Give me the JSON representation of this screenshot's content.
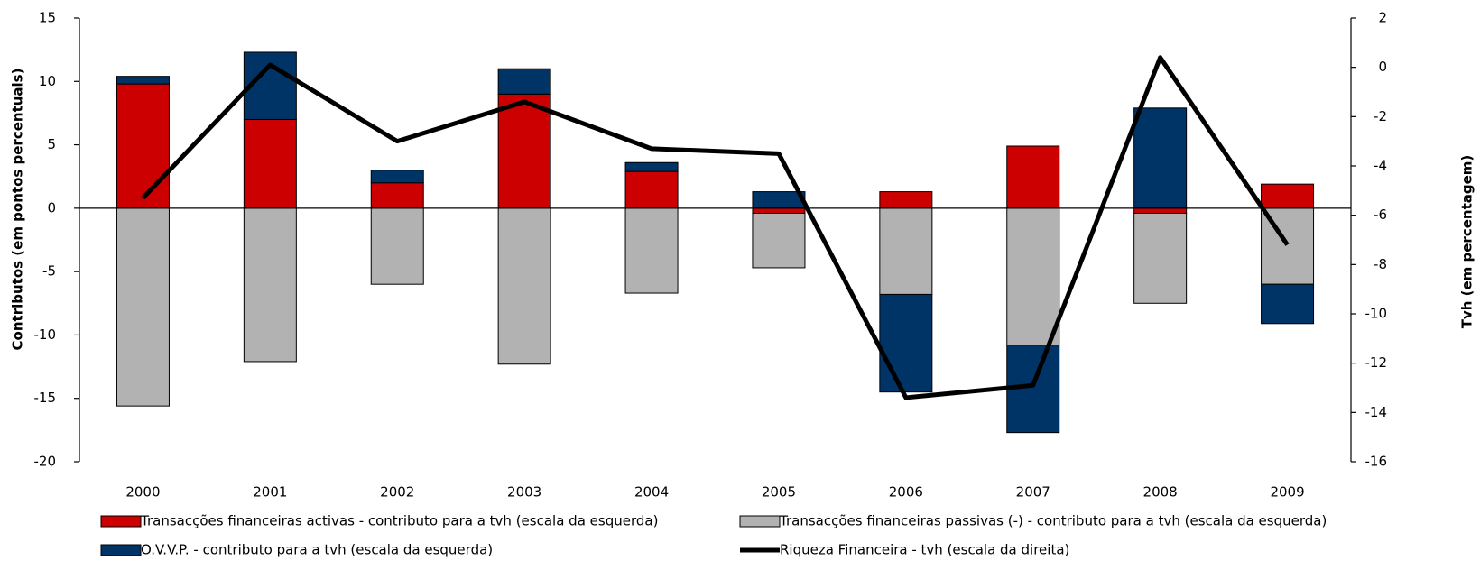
{
  "chart_data": {
    "type": "bar",
    "categories": [
      "2000",
      "2001",
      "2002",
      "2003",
      "2004",
      "2005",
      "2006",
      "2007",
      "2008",
      "2009"
    ],
    "ylabel": "Contributos (em pontos percentuais)",
    "y2label": "Tvh (em percentagem)",
    "ylim": [
      -20,
      15
    ],
    "yticks": [
      -20,
      -15,
      -10,
      -5,
      0,
      5,
      10,
      15
    ],
    "y2lim": [
      -16,
      2
    ],
    "y2ticks": [
      -16,
      -14,
      -12,
      -10,
      -8,
      -6,
      -4,
      -2,
      0,
      2
    ],
    "stacked": true,
    "series": [
      {
        "name": "Transacções financeiras activas - contributo  para a tvh (escala da esquerda)",
        "color": "#cc0000",
        "type": "bar",
        "values": [
          9.8,
          7.0,
          2.0,
          9.0,
          2.9,
          -0.4,
          1.3,
          4.9,
          -0.4,
          1.9
        ]
      },
      {
        "name": "Transacções financeiras passivas (-) - contributo  para a tvh (escala da esquerda)",
        "color": "#b2b2b2",
        "type": "bar",
        "values": [
          -15.6,
          -12.1,
          -6.0,
          -12.3,
          -6.7,
          -4.3,
          -6.8,
          -10.8,
          -7.1,
          -6.0
        ]
      },
      {
        "name": "O.V.V.P. - contributo  para a tvh (escala da esquerda)",
        "color": "#003366",
        "type": "bar",
        "values": [
          0.6,
          5.3,
          1.0,
          2.0,
          0.7,
          1.3,
          -7.7,
          -6.9,
          7.9,
          -3.1
        ]
      },
      {
        "name": "Riqueza Financeira - tvh (escala da direita)",
        "color": "#000000",
        "type": "line",
        "axis": "y2",
        "values": [
          -5.3,
          0.1,
          -3.0,
          -1.4,
          -3.3,
          -3.5,
          -13.4,
          -12.9,
          0.4,
          -7.2
        ]
      }
    ]
  }
}
